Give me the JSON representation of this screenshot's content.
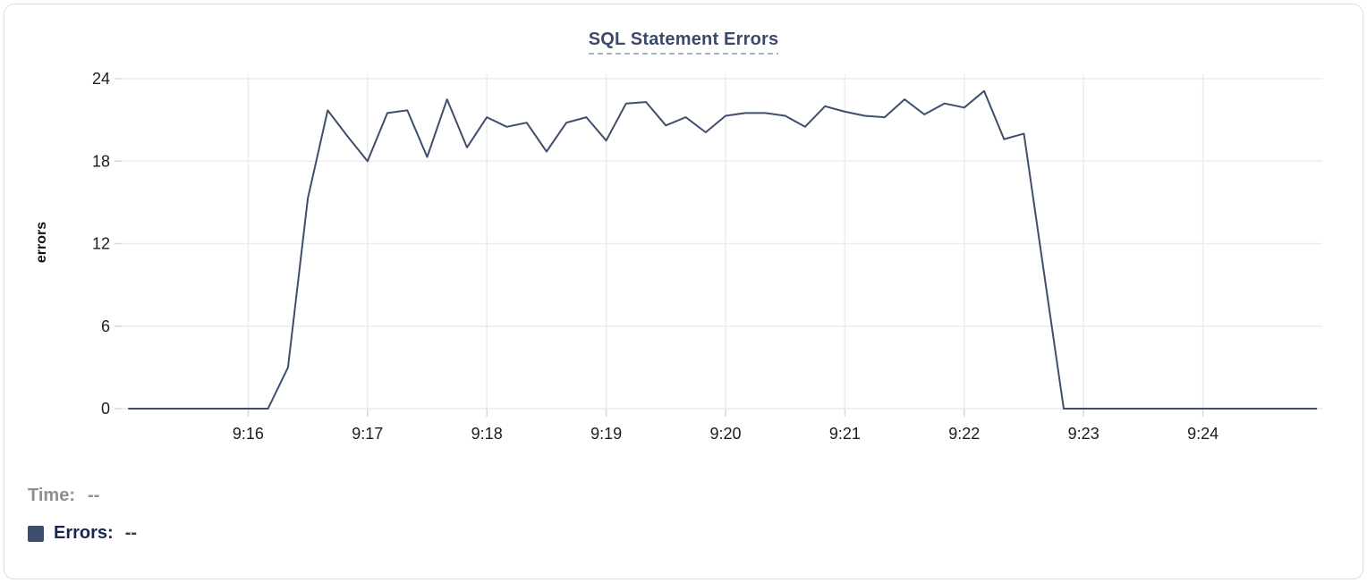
{
  "card": {
    "title": "SQL Statement Errors"
  },
  "colors": {
    "title": "#3b4a6a",
    "title_underline": "#a9b3c7",
    "series_line": "#3f4e6c",
    "legend_swatch": "#3e4d6e",
    "grid": "#ececec",
    "axis_tick": "#d9d9d9",
    "tick_label": "#1c1c1e",
    "time_label": "#8e8e93",
    "errors_label": "#18274f",
    "errors_value": "#2c3b63",
    "card_border": "#dedede"
  },
  "legend": {
    "time_label": "Time:",
    "time_value": "--",
    "errors_label": "Errors:",
    "errors_value": "--"
  },
  "chart_data": {
    "type": "line",
    "title": "SQL Statement Errors",
    "xlabel": "",
    "ylabel": "errors",
    "grid": true,
    "legend_position": "bottom-left",
    "ylim": [
      0,
      24
    ],
    "y_ticks": [
      0,
      6,
      12,
      18,
      24
    ],
    "x_axis_range": [
      "9:15:00",
      "9:25:00"
    ],
    "x_tick_labels": [
      "9:16",
      "9:17",
      "9:18",
      "9:19",
      "9:20",
      "9:21",
      "9:22",
      "9:23",
      "9:24"
    ],
    "series": [
      {
        "name": "Errors",
        "color": "#3f4e6c",
        "sample_interval_seconds": 10,
        "points": [
          [
            "9:15:00",
            0
          ],
          [
            "9:15:10",
            0
          ],
          [
            "9:15:20",
            0
          ],
          [
            "9:15:30",
            0
          ],
          [
            "9:15:40",
            0
          ],
          [
            "9:15:50",
            0
          ],
          [
            "9:16:00",
            0
          ],
          [
            "9:16:10",
            0
          ],
          [
            "9:16:20",
            3
          ],
          [
            "9:16:30",
            15.3
          ],
          [
            "9:16:40",
            21.7
          ],
          [
            "9:16:50",
            19.8
          ],
          [
            "9:17:00",
            18
          ],
          [
            "9:17:10",
            21.5
          ],
          [
            "9:17:20",
            21.7
          ],
          [
            "9:17:30",
            18.3
          ],
          [
            "9:17:40",
            22.5
          ],
          [
            "9:17:50",
            19
          ],
          [
            "9:18:00",
            21.2
          ],
          [
            "9:18:10",
            20.5
          ],
          [
            "9:18:20",
            20.8
          ],
          [
            "9:18:30",
            18.7
          ],
          [
            "9:18:40",
            20.8
          ],
          [
            "9:18:50",
            21.2
          ],
          [
            "9:19:00",
            19.5
          ],
          [
            "9:19:10",
            22.2
          ],
          [
            "9:19:20",
            22.3
          ],
          [
            "9:19:30",
            20.6
          ],
          [
            "9:19:40",
            21.2
          ],
          [
            "9:19:50",
            20.1
          ],
          [
            "9:20:00",
            21.3
          ],
          [
            "9:20:10",
            21.5
          ],
          [
            "9:20:20",
            21.5
          ],
          [
            "9:20:30",
            21.3
          ],
          [
            "9:20:40",
            20.5
          ],
          [
            "9:20:50",
            22
          ],
          [
            "9:21:00",
            21.6
          ],
          [
            "9:21:10",
            21.3
          ],
          [
            "9:21:20",
            21.2
          ],
          [
            "9:21:30",
            22.5
          ],
          [
            "9:21:40",
            21.4
          ],
          [
            "9:21:50",
            22.2
          ],
          [
            "9:22:00",
            21.9
          ],
          [
            "9:22:10",
            23.1
          ],
          [
            "9:22:20",
            19.6
          ],
          [
            "9:22:30",
            20
          ],
          [
            "9:22:40",
            10
          ],
          [
            "9:22:50",
            0
          ],
          [
            "9:23:00",
            0
          ],
          [
            "9:23:10",
            0
          ],
          [
            "9:23:20",
            0
          ],
          [
            "9:23:30",
            0
          ],
          [
            "9:23:40",
            0
          ],
          [
            "9:23:50",
            0
          ],
          [
            "9:24:00",
            0
          ],
          [
            "9:24:10",
            0
          ],
          [
            "9:24:20",
            0
          ],
          [
            "9:24:30",
            0
          ],
          [
            "9:24:40",
            0
          ],
          [
            "9:24:50",
            0
          ],
          [
            "9:24:57",
            0
          ]
        ]
      }
    ]
  }
}
